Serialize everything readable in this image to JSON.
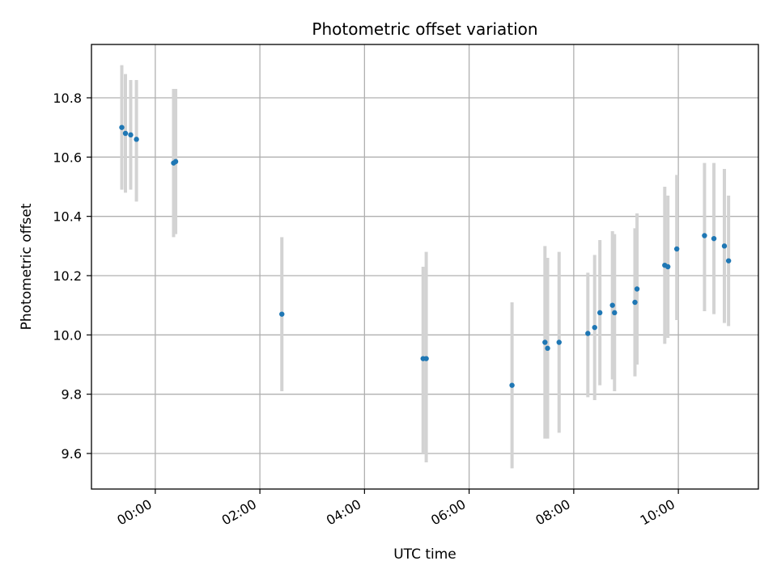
{
  "chart_data": {
    "type": "scatter",
    "title": "Photometric offset variation",
    "xlabel": "UTC time",
    "ylabel": "Photometric offset",
    "x_unit": "UTC hours of day (negative = previous day)",
    "xlim": [
      -1.22,
      11.53
    ],
    "ylim": [
      9.48,
      10.98
    ],
    "x_ticks": [
      {
        "value": 0,
        "label": "00:00"
      },
      {
        "value": 2,
        "label": "02:00"
      },
      {
        "value": 4,
        "label": "04:00"
      },
      {
        "value": 6,
        "label": "06:00"
      },
      {
        "value": 8,
        "label": "08:00"
      },
      {
        "value": 10,
        "label": "10:00"
      }
    ],
    "y_ticks": [
      {
        "value": 9.6,
        "label": "9.6"
      },
      {
        "value": 9.8,
        "label": "9.8"
      },
      {
        "value": 10.0,
        "label": "10.0"
      },
      {
        "value": 10.2,
        "label": "10.2"
      },
      {
        "value": 10.4,
        "label": "10.4"
      },
      {
        "value": 10.6,
        "label": "10.6"
      },
      {
        "value": 10.8,
        "label": "10.8"
      }
    ],
    "grid": true,
    "marker_color": "#1f77b4",
    "errorbar_color": "#d3d3d3",
    "points": [
      {
        "x": -0.64,
        "y": 10.7,
        "ylo": 10.49,
        "yhi": 10.91
      },
      {
        "x": -0.57,
        "y": 10.68,
        "ylo": 10.48,
        "yhi": 10.88
      },
      {
        "x": -0.47,
        "y": 10.675,
        "ylo": 10.49,
        "yhi": 10.86
      },
      {
        "x": -0.36,
        "y": 10.66,
        "ylo": 10.45,
        "yhi": 10.86
      },
      {
        "x": 0.35,
        "y": 10.58,
        "ylo": 10.33,
        "yhi": 10.83
      },
      {
        "x": 0.39,
        "y": 10.585,
        "ylo": 10.34,
        "yhi": 10.83
      },
      {
        "x": 2.42,
        "y": 10.07,
        "ylo": 9.81,
        "yhi": 10.33
      },
      {
        "x": 5.12,
        "y": 9.92,
        "ylo": 9.6,
        "yhi": 10.23
      },
      {
        "x": 5.18,
        "y": 9.92,
        "ylo": 9.57,
        "yhi": 10.28
      },
      {
        "x": 6.82,
        "y": 9.83,
        "ylo": 9.55,
        "yhi": 10.11
      },
      {
        "x": 7.45,
        "y": 9.975,
        "ylo": 9.65,
        "yhi": 10.3
      },
      {
        "x": 7.5,
        "y": 9.955,
        "ylo": 9.65,
        "yhi": 10.26
      },
      {
        "x": 7.72,
        "y": 9.975,
        "ylo": 9.67,
        "yhi": 10.28
      },
      {
        "x": 8.27,
        "y": 10.005,
        "ylo": 9.79,
        "yhi": 10.21
      },
      {
        "x": 8.4,
        "y": 10.025,
        "ylo": 9.78,
        "yhi": 10.27
      },
      {
        "x": 8.5,
        "y": 10.075,
        "ylo": 9.83,
        "yhi": 10.32
      },
      {
        "x": 8.74,
        "y": 10.1,
        "ylo": 9.85,
        "yhi": 10.35
      },
      {
        "x": 8.78,
        "y": 10.075,
        "ylo": 9.81,
        "yhi": 10.34
      },
      {
        "x": 9.17,
        "y": 10.11,
        "ylo": 9.86,
        "yhi": 10.36
      },
      {
        "x": 9.21,
        "y": 10.155,
        "ylo": 9.9,
        "yhi": 10.41
      },
      {
        "x": 9.74,
        "y": 10.235,
        "ylo": 9.97,
        "yhi": 10.5
      },
      {
        "x": 9.8,
        "y": 10.23,
        "ylo": 9.99,
        "yhi": 10.47
      },
      {
        "x": 9.97,
        "y": 10.29,
        "ylo": 10.05,
        "yhi": 10.54
      },
      {
        "x": 10.5,
        "y": 10.335,
        "ylo": 10.08,
        "yhi": 10.58
      },
      {
        "x": 10.68,
        "y": 10.325,
        "ylo": 10.07,
        "yhi": 10.58
      },
      {
        "x": 10.88,
        "y": 10.3,
        "ylo": 10.04,
        "yhi": 10.56
      },
      {
        "x": 10.96,
        "y": 10.25,
        "ylo": 10.03,
        "yhi": 10.47
      }
    ]
  }
}
